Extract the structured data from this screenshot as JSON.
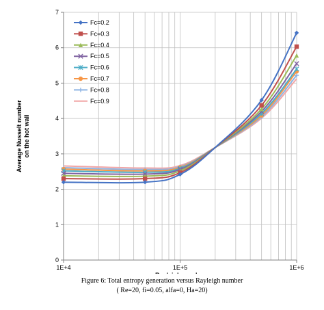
{
  "chart_data": {
    "type": "line",
    "xlabel": "Rayleigh number",
    "ylabel": "Average Nusselt number on the hot wall",
    "ylabel_lines": [
      "Average Nusselt number",
      "on the hot wall"
    ],
    "xscale": "log",
    "xlim": [
      10000,
      1000000
    ],
    "ylim": [
      0,
      7
    ],
    "yticks": [
      0,
      1,
      2,
      3,
      4,
      5,
      6,
      7
    ],
    "xtick_labels": [
      "1E+4",
      "1E+5",
      "1E+6"
    ],
    "grid": true,
    "legend_position": "top-left",
    "x": [
      10000,
      50000,
      100000,
      200000,
      500000,
      1000000
    ],
    "series": [
      {
        "name": "Fc=0.2",
        "color": "#4472c4",
        "marker": "diamond",
        "values": [
          2.2,
          2.2,
          2.42,
          3.18,
          4.52,
          6.42
        ]
      },
      {
        "name": "Fc=0.3",
        "color": "#c0504d",
        "marker": "square",
        "values": [
          2.3,
          2.3,
          2.47,
          3.18,
          4.37,
          6.03
        ]
      },
      {
        "name": "Fc=0.4",
        "color": "#9bbb59",
        "marker": "triangle",
        "values": [
          2.38,
          2.37,
          2.52,
          3.18,
          4.27,
          5.78
        ]
      },
      {
        "name": "Fc=0.5",
        "color": "#8064a2",
        "marker": "x",
        "values": [
          2.45,
          2.43,
          2.56,
          3.18,
          4.2,
          5.55
        ]
      },
      {
        "name": "Fc=0.6",
        "color": "#4bacc6",
        "marker": "star",
        "values": [
          2.52,
          2.48,
          2.59,
          3.18,
          4.14,
          5.4
        ]
      },
      {
        "name": "Fc=0.7",
        "color": "#f79646",
        "marker": "circle",
        "values": [
          2.57,
          2.52,
          2.62,
          3.18,
          4.09,
          5.33
        ]
      },
      {
        "name": "Fc=0.8",
        "color": "#8eb4e3",
        "marker": "plus",
        "values": [
          2.61,
          2.56,
          2.64,
          3.18,
          4.05,
          5.22
        ]
      },
      {
        "name": "Fc=0.9",
        "color": "#f2a6a6",
        "marker": "none",
        "values": [
          2.66,
          2.6,
          2.67,
          3.18,
          4.01,
          5.12
        ]
      }
    ]
  },
  "caption": {
    "line1": "Figure 6: Total entropy generation versus Rayleigh number",
    "line2": "( Re=20, fi=0.05, alfa=0, Ha=20)"
  }
}
